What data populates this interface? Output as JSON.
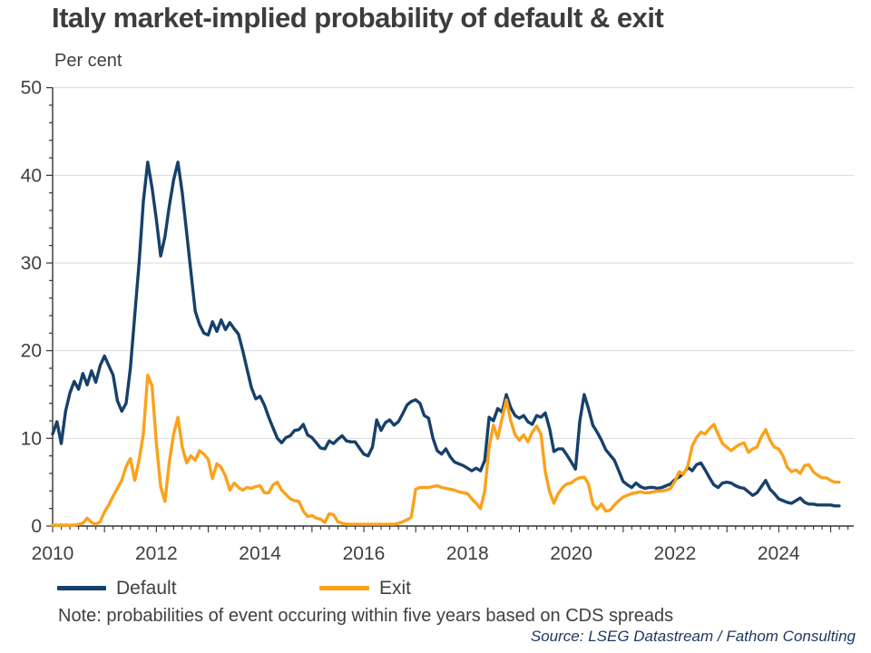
{
  "header": {
    "title": "Italy market-implied probability of default & exit",
    "unit_label": "Per cent"
  },
  "legend": {
    "items": [
      {
        "label": "Default",
        "color": "#17406B"
      },
      {
        "label": "Exit",
        "color": "#FAA21B"
      }
    ]
  },
  "footer": {
    "note": "Note: probabilities of event occuring within five years based on CDS spreads",
    "source": "Source: LSEG Datastream / Fathom Consulting"
  },
  "chart_data": {
    "type": "line",
    "title": "Italy market-implied probability of default & exit",
    "ylabel": "Per cent",
    "xlabel": "",
    "x_start": 2010.0,
    "x_step_years": 0.08333,
    "xlim": [
      2010.0,
      2025.43
    ],
    "ylim": [
      0,
      50
    ],
    "x_ticks": [
      2010,
      2012,
      2014,
      2016,
      2018,
      2020,
      2022,
      2024
    ],
    "y_ticks": [
      0,
      10,
      20,
      30,
      40,
      50
    ],
    "y_minor_step": 2,
    "x_minor_step_years": 0.1667,
    "grid": "horizontal-major",
    "gridline_color": "#d9d9d9",
    "axis_color": "#333333",
    "label_color": "#404040",
    "legend_position": "bottom",
    "series": [
      {
        "name": "Default",
        "color": "#17406B",
        "values": [
          10.5,
          11.9,
          9.4,
          13.1,
          15.2,
          16.5,
          15.6,
          17.4,
          16.1,
          17.7,
          16.4,
          18.3,
          19.4,
          18.3,
          17.2,
          14.3,
          13.1,
          14.0,
          18.0,
          24.0,
          30.0,
          37.0,
          41.5,
          38.6,
          35.0,
          30.8,
          33.0,
          36.5,
          39.5,
          41.5,
          38.0,
          33.5,
          29.0,
          24.5,
          23.0,
          22.0,
          21.8,
          23.3,
          22.2,
          23.5,
          22.4,
          23.2,
          22.5,
          21.9,
          20.0,
          17.9,
          15.8,
          14.5,
          14.8,
          13.8,
          12.4,
          11.2,
          10.0,
          9.5,
          10.1,
          10.3,
          10.9,
          11.0,
          11.6,
          10.4,
          10.1,
          9.5,
          8.9,
          8.8,
          9.7,
          9.4,
          9.9,
          10.3,
          9.7,
          9.6,
          9.6,
          8.9,
          8.2,
          8.0,
          9.0,
          12.1,
          10.9,
          11.8,
          12.1,
          11.5,
          11.9,
          12.8,
          13.8,
          14.2,
          14.4,
          14.0,
          12.6,
          12.3,
          10.0,
          8.6,
          8.2,
          8.8,
          7.9,
          7.3,
          7.1,
          6.9,
          6.6,
          6.3,
          6.6,
          6.3,
          7.5,
          12.4,
          12.0,
          13.4,
          13.0,
          15.0,
          13.5,
          12.6,
          12.3,
          12.6,
          11.9,
          11.6,
          12.6,
          12.4,
          12.9,
          11.1,
          8.5,
          8.8,
          8.8,
          8.1,
          7.3,
          6.5,
          12.0,
          15.0,
          13.4,
          11.5,
          10.7,
          9.8,
          8.7,
          8.1,
          7.5,
          6.3,
          5.1,
          4.7,
          4.4,
          4.9,
          4.5,
          4.3,
          4.4,
          4.4,
          4.3,
          4.4,
          4.6,
          4.8,
          5.3,
          5.6,
          6.0,
          6.7,
          6.3,
          7.0,
          7.2,
          6.4,
          5.5,
          4.7,
          4.4,
          4.9,
          5.0,
          4.9,
          4.6,
          4.4,
          4.3,
          3.9,
          3.5,
          3.8,
          4.5,
          5.2,
          4.2,
          3.7,
          3.1,
          2.9,
          2.7,
          2.6,
          2.9,
          3.2,
          2.7,
          2.5,
          2.5,
          2.4,
          2.4,
          2.4,
          2.4,
          2.3,
          2.3
        ]
      },
      {
        "name": "Exit",
        "color": "#FAA21B",
        "values": [
          0.1,
          0.1,
          0.1,
          0.1,
          0.1,
          0.1,
          0.2,
          0.3,
          0.9,
          0.4,
          0.2,
          0.5,
          1.6,
          2.4,
          3.4,
          4.3,
          5.2,
          6.8,
          7.7,
          5.2,
          7.5,
          10.5,
          17.2,
          16.0,
          9.5,
          4.5,
          2.8,
          7.3,
          10.5,
          12.4,
          9.0,
          7.2,
          8.0,
          7.5,
          8.6,
          8.2,
          7.6,
          5.4,
          7.1,
          6.7,
          5.7,
          4.1,
          4.9,
          4.4,
          4.1,
          4.4,
          4.3,
          4.5,
          4.6,
          3.8,
          3.8,
          4.7,
          5.0,
          4.1,
          3.6,
          3.1,
          2.9,
          2.8,
          1.7,
          1.1,
          1.2,
          0.9,
          0.8,
          0.4,
          1.4,
          1.3,
          0.5,
          0.3,
          0.2,
          0.2,
          0.2,
          0.2,
          0.2,
          0.2,
          0.2,
          0.2,
          0.2,
          0.2,
          0.2,
          0.2,
          0.3,
          0.5,
          0.7,
          1.0,
          4.2,
          4.4,
          4.4,
          4.4,
          4.5,
          4.6,
          4.4,
          4.3,
          4.2,
          4.1,
          3.9,
          3.8,
          3.7,
          3.1,
          2.6,
          2.0,
          4.0,
          9.0,
          11.5,
          10.0,
          12.3,
          14.4,
          12.0,
          10.4,
          9.8,
          10.4,
          9.6,
          10.7,
          11.4,
          10.5,
          6.2,
          3.9,
          2.6,
          3.7,
          4.4,
          4.8,
          4.9,
          5.3,
          5.5,
          5.6,
          4.8,
          2.5,
          1.9,
          2.5,
          1.7,
          1.8,
          2.4,
          2.9,
          3.3,
          3.5,
          3.7,
          3.8,
          3.9,
          3.8,
          3.8,
          3.9,
          4.0,
          4.0,
          4.1,
          4.3,
          5.1,
          6.2,
          5.9,
          6.9,
          9.1,
          10.1,
          10.7,
          10.5,
          11.1,
          11.6,
          10.5,
          9.4,
          9.0,
          8.6,
          9.0,
          9.3,
          9.5,
          8.4,
          8.8,
          9.0,
          10.2,
          11.0,
          9.8,
          9.0,
          8.8,
          8.0,
          6.7,
          6.2,
          6.4,
          6.0,
          6.9,
          7.0,
          6.2,
          5.8,
          5.5,
          5.5,
          5.2,
          5.0,
          5.0
        ]
      }
    ]
  }
}
